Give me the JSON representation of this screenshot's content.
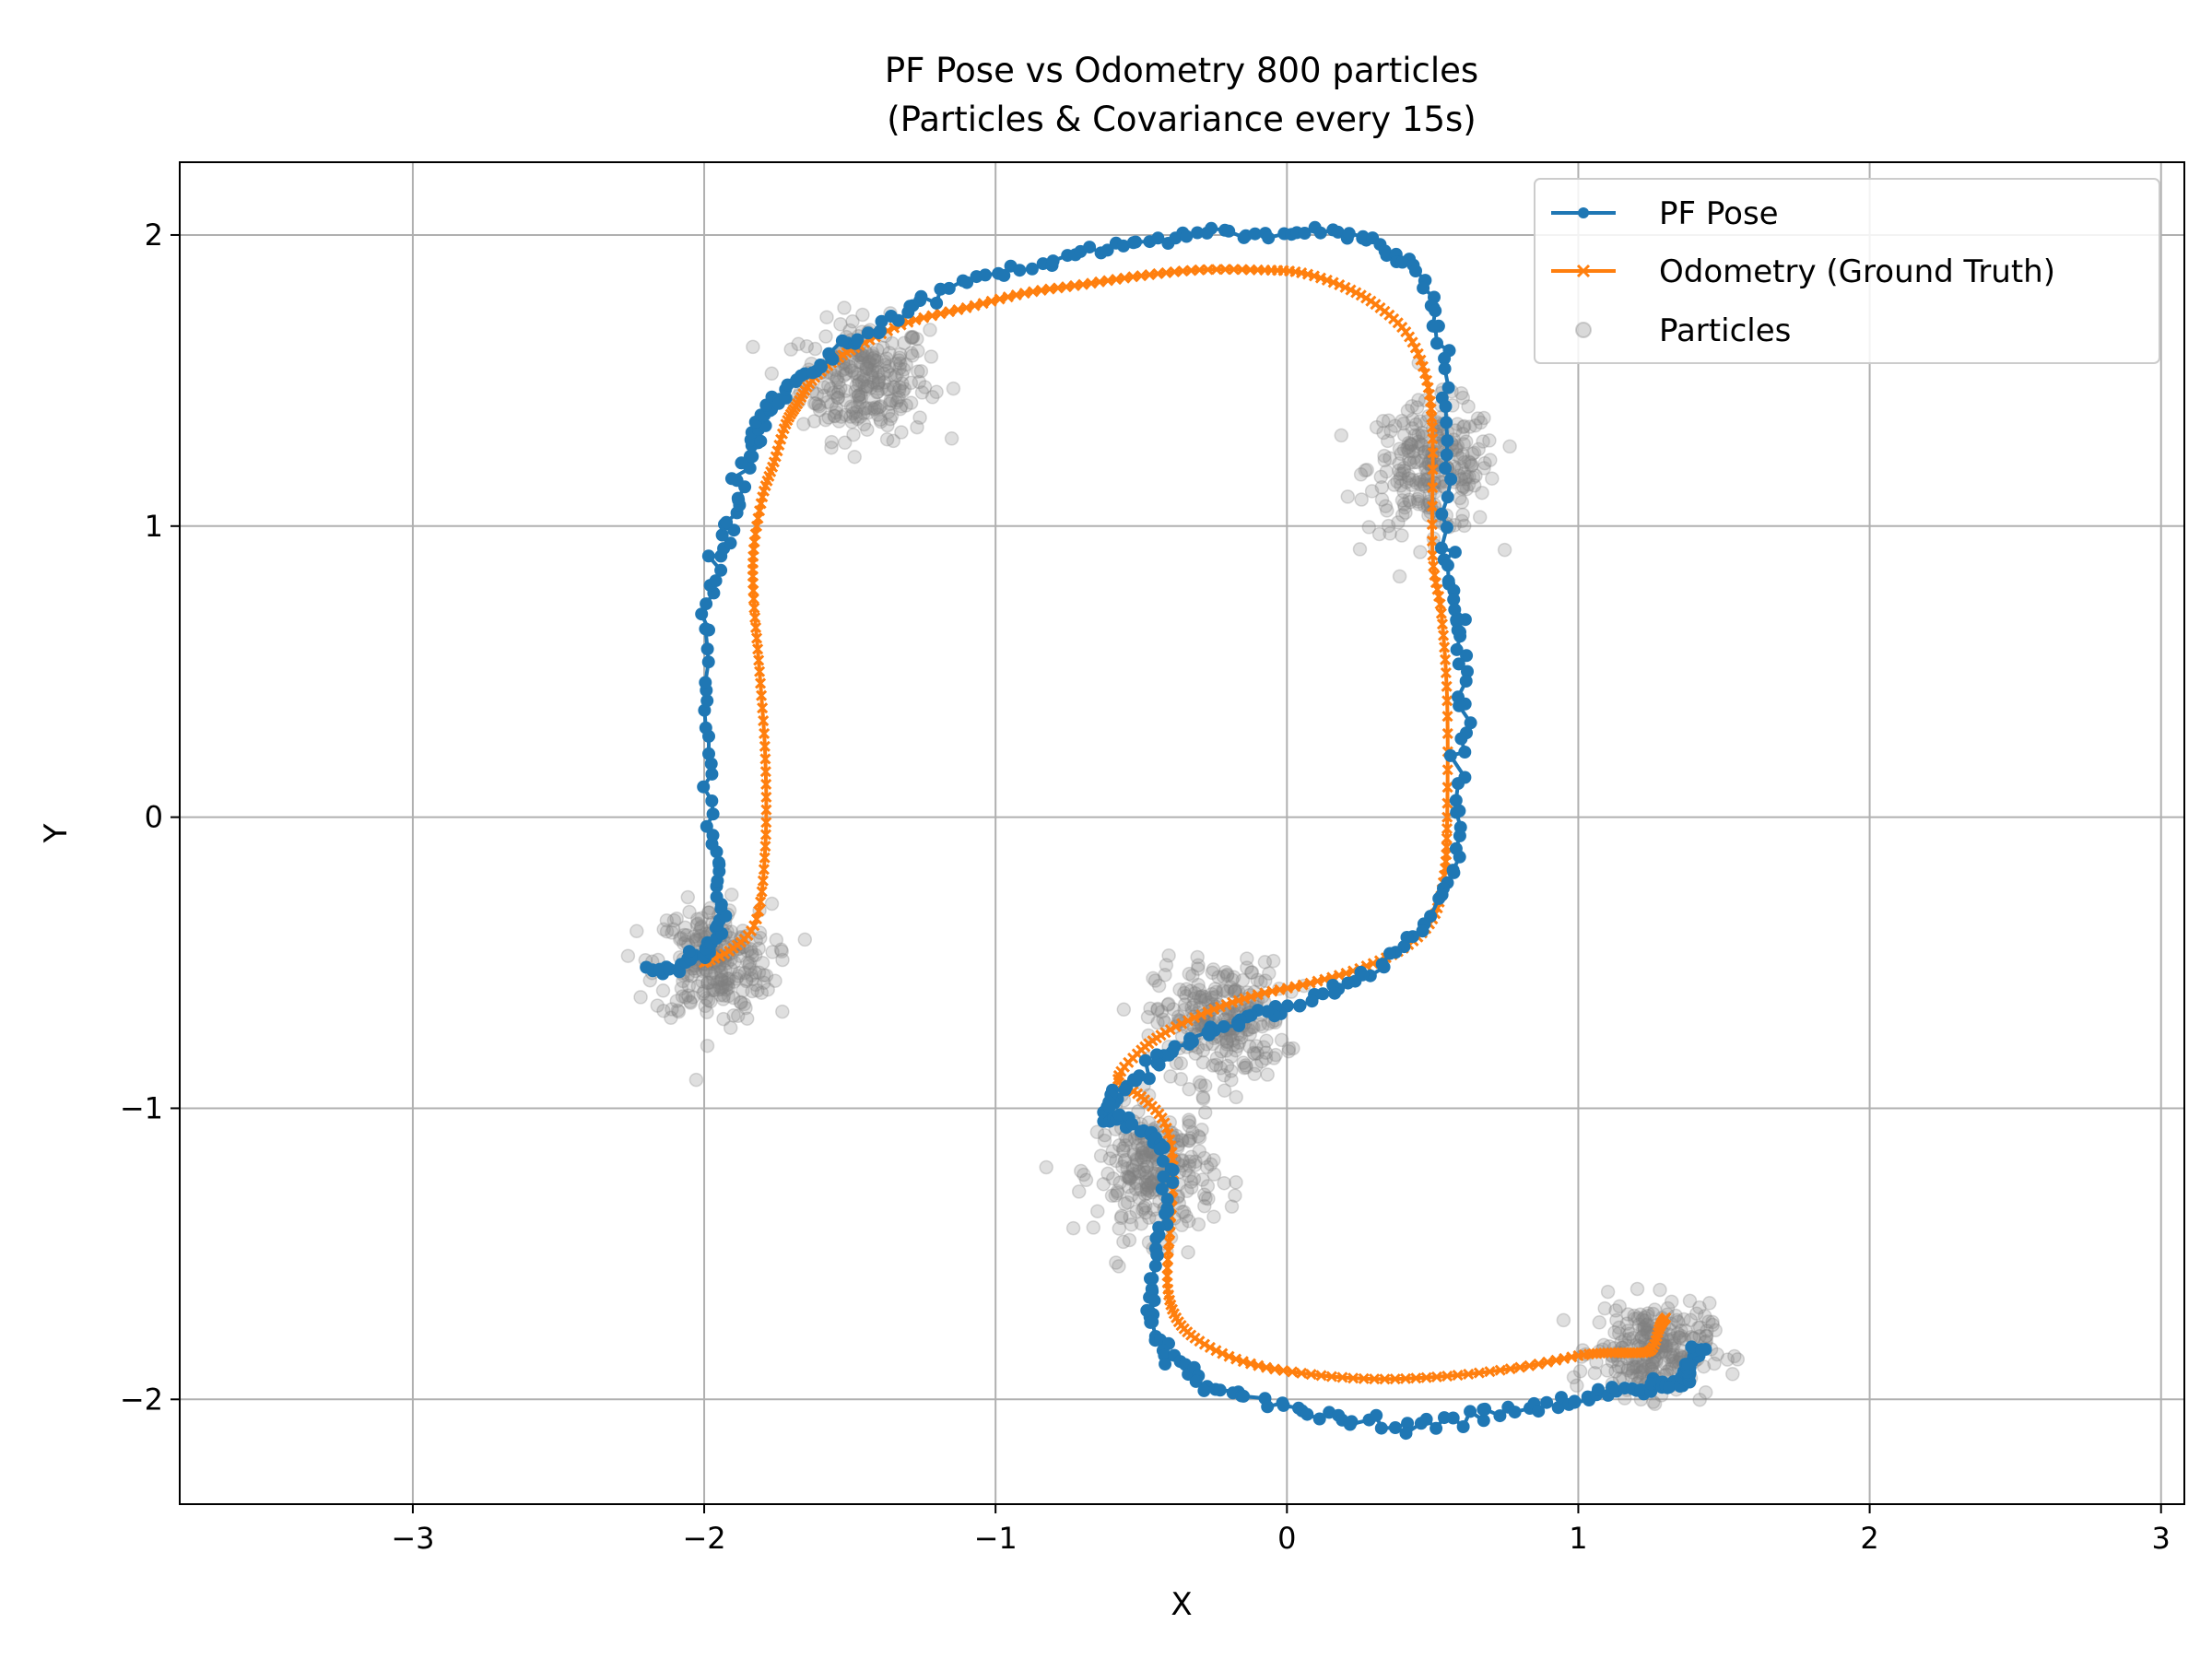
{
  "chart_data": {
    "type": "scatter",
    "title": "PF Pose vs Odometry 800 particles",
    "subtitle": "(Particles & Covariance every 15s)",
    "xlabel": "X",
    "ylabel": "Y",
    "xlim": [
      -3.8,
      3.08
    ],
    "ylim": [
      -2.36,
      2.25
    ],
    "xticks": [
      -3,
      -2,
      -1,
      0,
      1,
      2,
      3
    ],
    "xtick_labels": [
      "−3",
      "−2",
      "−1",
      "0",
      "1",
      "2",
      "3"
    ],
    "yticks": [
      -2,
      -1,
      0,
      1,
      2
    ],
    "ytick_labels": [
      "−2",
      "−1",
      "0",
      "1",
      "2"
    ],
    "grid": true,
    "legend_position": "top-right",
    "colors": {
      "pf_pose": "#1f77b4",
      "odometry": "#ff7f0e",
      "particles": "#808080"
    },
    "series": [
      {
        "name": "PF Pose",
        "style": "line-with-dots",
        "x": [
          -2.2,
          -2.1,
          -2.02,
          -1.97,
          -1.95,
          -1.96,
          -1.98,
          -1.99,
          -1.98,
          -1.95,
          -1.9,
          -1.86,
          -1.82,
          -1.8,
          -1.74,
          -1.65,
          -1.55,
          -1.4,
          -1.25,
          -1.05,
          -0.85,
          -0.65,
          -0.45,
          -0.25,
          -0.05,
          0.15,
          0.3,
          0.42,
          0.5,
          0.54,
          0.55,
          0.55,
          0.57,
          0.6,
          0.61,
          0.6,
          0.58,
          0.52,
          0.4,
          0.25,
          0.1,
          -0.05,
          -0.18,
          -0.3,
          -0.42,
          -0.52,
          -0.6,
          -0.62,
          -0.55,
          -0.46,
          -0.41,
          -0.42,
          -0.45,
          -0.47,
          -0.46,
          -0.4,
          -0.3,
          -0.15,
          0.05,
          0.25,
          0.45,
          0.65,
          0.85,
          1.0,
          1.15,
          1.25,
          1.32,
          1.36,
          1.38,
          1.4,
          1.42
        ],
        "y": [
          -0.54,
          -0.52,
          -0.48,
          -0.42,
          -0.32,
          -0.15,
          0.1,
          0.4,
          0.7,
          0.9,
          1.05,
          1.2,
          1.3,
          1.38,
          1.45,
          1.52,
          1.6,
          1.68,
          1.77,
          1.85,
          1.9,
          1.95,
          1.99,
          2.01,
          2.01,
          2.01,
          1.97,
          1.9,
          1.78,
          1.6,
          1.3,
          0.95,
          0.75,
          0.6,
          0.4,
          0.15,
          -0.1,
          -0.3,
          -0.45,
          -0.55,
          -0.62,
          -0.66,
          -0.7,
          -0.75,
          -0.82,
          -0.9,
          -0.97,
          -1.02,
          -1.05,
          -1.1,
          -1.2,
          -1.35,
          -1.5,
          -1.65,
          -1.75,
          -1.85,
          -1.93,
          -1.99,
          -2.04,
          -2.07,
          -2.08,
          -2.06,
          -2.03,
          -2.0,
          -1.97,
          -1.96,
          -1.95,
          -1.93,
          -1.9,
          -1.86,
          -1.82
        ]
      },
      {
        "name": "Odometry (Ground Truth)",
        "style": "line-with-x",
        "x": [
          -2.0,
          -1.9,
          -1.82,
          -1.79,
          -1.79,
          -1.81,
          -1.83,
          -1.83,
          -1.8,
          -1.76,
          -1.72,
          -1.68,
          -1.63,
          -1.55,
          -1.45,
          -1.3,
          -1.1,
          -0.9,
          -0.7,
          -0.5,
          -0.3,
          -0.1,
          0.05,
          0.2,
          0.32,
          0.42,
          0.48,
          0.5,
          0.5,
          0.53,
          0.55,
          0.55,
          0.54,
          0.5,
          0.4,
          0.25,
          0.08,
          -0.1,
          -0.25,
          -0.4,
          -0.5,
          -0.58,
          -0.5,
          -0.42,
          -0.39,
          -0.4,
          -0.41,
          -0.38,
          -0.3,
          -0.15,
          0.05,
          0.3,
          0.55,
          0.8,
          1.0,
          1.1,
          1.18,
          1.25,
          1.28,
          1.3
        ],
        "y": [
          -0.5,
          -0.45,
          -0.35,
          -0.1,
          0.2,
          0.5,
          0.75,
          0.92,
          1.1,
          1.22,
          1.35,
          1.42,
          1.5,
          1.57,
          1.63,
          1.7,
          1.75,
          1.8,
          1.83,
          1.86,
          1.88,
          1.88,
          1.87,
          1.82,
          1.75,
          1.65,
          1.5,
          1.3,
          0.9,
          0.7,
          0.4,
          0.0,
          -0.2,
          -0.35,
          -0.45,
          -0.52,
          -0.57,
          -0.61,
          -0.66,
          -0.73,
          -0.8,
          -0.9,
          -0.96,
          -1.05,
          -1.2,
          -1.4,
          -1.6,
          -1.72,
          -1.8,
          -1.87,
          -1.91,
          -1.93,
          -1.92,
          -1.89,
          -1.85,
          -1.84,
          -1.84,
          -1.83,
          -1.75,
          -1.72
        ]
      },
      {
        "name": "Particles",
        "style": "scatter-cloud",
        "clusters": [
          {
            "center": [
              -1.45,
              1.5
            ],
            "spread": [
              0.11,
              0.1
            ]
          },
          {
            "center": [
              0.5,
              1.2
            ],
            "spread": [
              0.11,
              0.11
            ]
          },
          {
            "center": [
              -1.97,
              -0.5
            ],
            "spread": [
              0.1,
              0.1
            ]
          },
          {
            "center": [
              -0.23,
              -0.7
            ],
            "spread": [
              0.11,
              0.1
            ]
          },
          {
            "center": [
              -0.45,
              -1.22
            ],
            "spread": [
              0.1,
              0.11
            ]
          },
          {
            "center": [
              1.25,
              -1.83
            ],
            "spread": [
              0.1,
              0.08
            ]
          }
        ]
      }
    ]
  }
}
